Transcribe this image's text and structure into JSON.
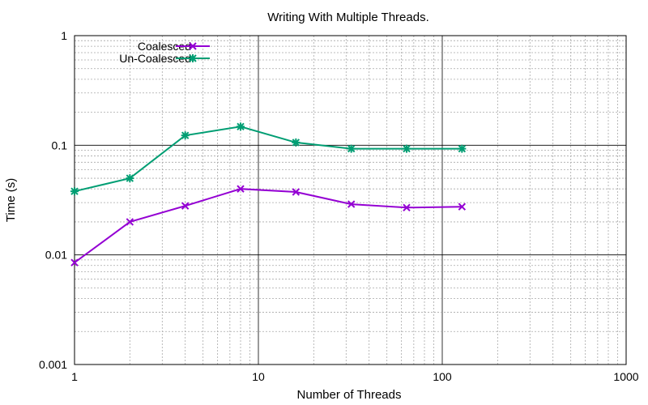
{
  "chart_data": {
    "type": "line",
    "title": "Writing With Multiple Threads.",
    "xlabel": "Number of Threads",
    "ylabel": "Time (s)",
    "xscale": "log",
    "yscale": "log",
    "xlim": [
      1,
      1000
    ],
    "ylim": [
      0.001,
      1
    ],
    "x_tick_labels": [
      "1",
      "10",
      "100",
      "1000"
    ],
    "y_tick_labels": [
      "0.001",
      "0.01",
      "0.1",
      "1"
    ],
    "grid": true,
    "legend_position": "top-left",
    "x": [
      1,
      2,
      4,
      8,
      16,
      32,
      64,
      128
    ],
    "series": [
      {
        "name": "Coalesced",
        "color": "#9400d3",
        "marker": "cross",
        "values": [
          0.0085,
          0.02,
          0.028,
          0.04,
          0.0375,
          0.029,
          0.027,
          0.0275
        ]
      },
      {
        "name": "Un-Coalesced",
        "color": "#009e73",
        "marker": "star",
        "values": [
          0.038,
          0.05,
          0.123,
          0.148,
          0.106,
          0.093,
          0.093,
          0.093
        ]
      }
    ]
  }
}
